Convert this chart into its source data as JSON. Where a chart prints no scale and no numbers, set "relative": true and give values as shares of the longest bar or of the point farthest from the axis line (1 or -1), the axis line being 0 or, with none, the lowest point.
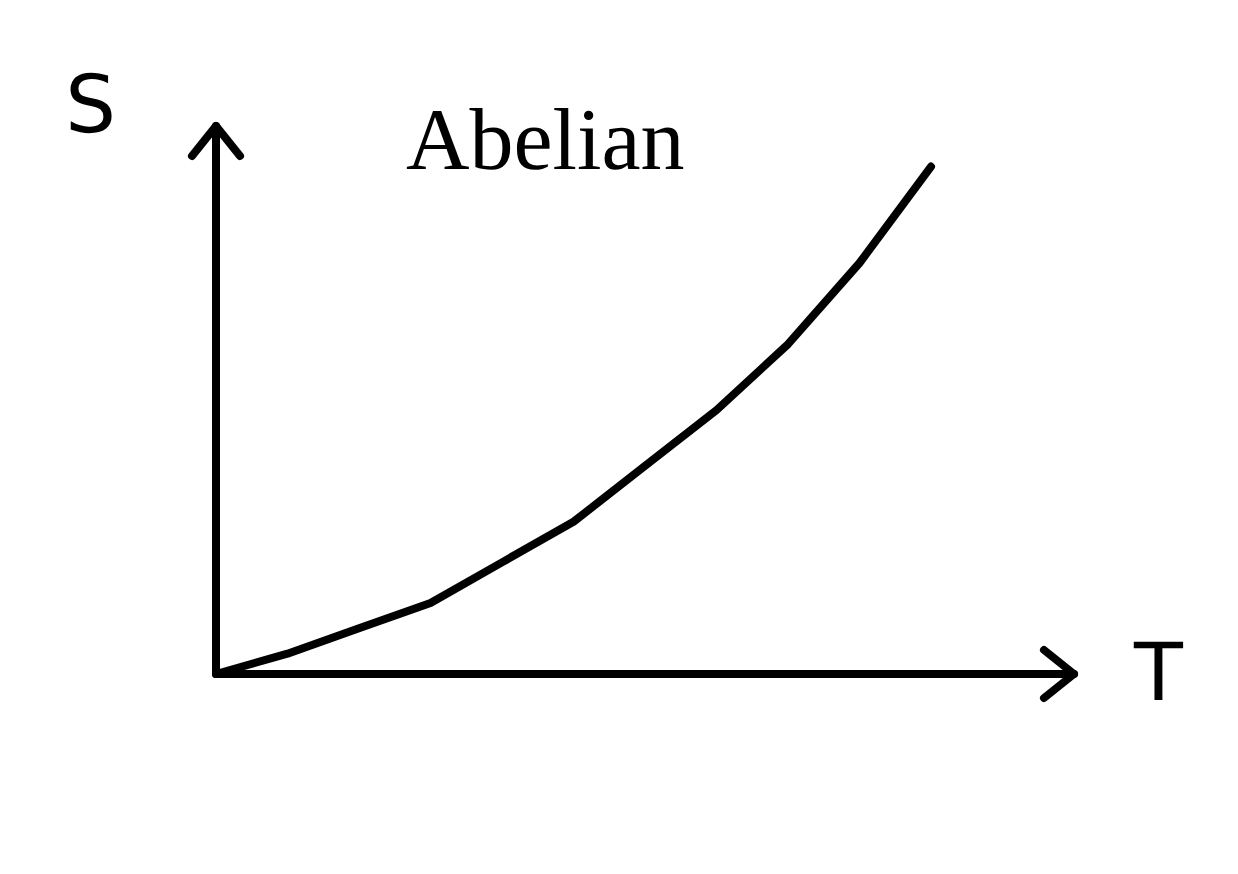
{
  "chart_data": {
    "type": "line",
    "title": "Abelian",
    "xlabel": "T",
    "ylabel": "S",
    "relative": true,
    "marker": "none",
    "line_style": "solid",
    "categories": [
      null,
      null,
      null,
      null,
      null,
      null,
      null,
      null,
      null,
      null,
      null,
      null,
      null
    ],
    "series": [
      {
        "color": "#000000",
        "values": [
          0,
          0.04,
          0.09,
          0.14,
          0.22,
          0.3,
          0.41,
          0.52,
          0.65,
          0.81,
          1,
          null,
          null
        ]
      }
    ]
  }
}
